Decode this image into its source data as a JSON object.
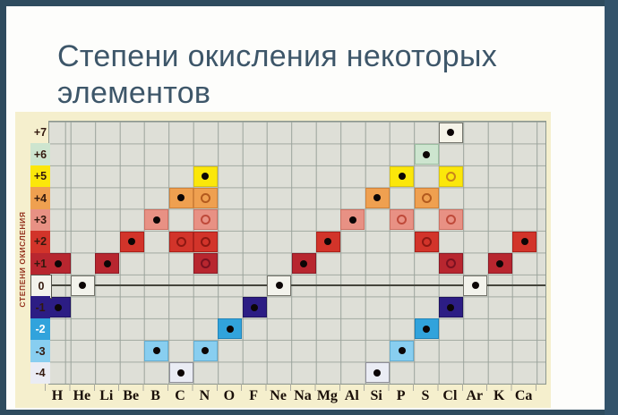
{
  "window": {
    "frame_color": "#2e4b5e",
    "right_band_color": "#33536b",
    "slide_bg": "#fdfdfb"
  },
  "title": {
    "lines": [
      "Степени окисления некоторых",
      "элементов"
    ],
    "color": "#3d5669"
  },
  "panel": {
    "bg": "#f5efcd",
    "plot_bg": "#dedfd7",
    "grid_color": "#9aa39c",
    "zero_line_color": "#45453c",
    "ylabel_color": "#93301c",
    "row_label_color": "#33190e",
    "element_label_color": "#1a0f08"
  },
  "chart_data": {
    "type": "heatmap",
    "title": "Степени окисления некоторых элементов",
    "ylabel": "СТЕПЕНИ ОКИСЛЕНИЯ",
    "xlabel": "",
    "x_categories": [
      "H",
      "He",
      "Li",
      "Be",
      "B",
      "C",
      "N",
      "O",
      "F",
      "Ne",
      "Na",
      "Mg",
      "Al",
      "Si",
      "P",
      "S",
      "Cl",
      "Ar",
      "K",
      "Ca"
    ],
    "y_range": [
      7,
      -4
    ],
    "grid": true,
    "marker_types": {
      "filled": "black filled dot",
      "open": "open circle"
    },
    "rows": [
      {
        "label": "+7",
        "color": "#f6f4e9",
        "border": "#73736a",
        "ring": "#8a8a80",
        "swatch": false
      },
      {
        "label": "+6",
        "color": "#cde5cf",
        "border": "#9cbfa2",
        "ring": "#5f8f6a",
        "swatch": true
      },
      {
        "label": "+5",
        "color": "#fbe70a",
        "border": "#d9c414",
        "ring": "#c9851a",
        "swatch": true
      },
      {
        "label": "+4",
        "color": "#efa050",
        "border": "#d0823a",
        "ring": "#b35a1e",
        "swatch": true
      },
      {
        "label": "+3",
        "color": "#e89184",
        "border": "#cc7163",
        "ring": "#bf4a3a",
        "swatch": true
      },
      {
        "label": "+2",
        "color": "#d2342a",
        "border": "#aa211b",
        "ring": "#8d1812",
        "swatch": true
      },
      {
        "label": "+1",
        "color": "#b8262f",
        "border": "#8a1a26",
        "ring": "#7a1120",
        "swatch": true
      },
      {
        "label": "0",
        "color": "#f3f3ec",
        "border": "#73736a",
        "ring": "#8a8a80",
        "swatch": true,
        "swatch_border": true
      },
      {
        "label": "-1",
        "color": "#2c1d84",
        "border": "#1e1260",
        "ring": "#150d4a",
        "swatch": true
      },
      {
        "label": "-2",
        "color": "#31a3dc",
        "border": "#2184b8",
        "ring": "#1a6e9c",
        "swatch": true,
        "label_color": "#ffffff"
      },
      {
        "label": "-3",
        "color": "#88cef0",
        "border": "#64aed2",
        "ring": "#4a92b8",
        "swatch": true
      },
      {
        "label": "-4",
        "color": "#eaecf4",
        "border": "#8e8e98",
        "ring": "#8a8a92",
        "swatch": true
      }
    ],
    "points": [
      {
        "element": "H",
        "state": "+1",
        "marker": "filled"
      },
      {
        "element": "H",
        "state": "-1",
        "marker": "filled"
      },
      {
        "element": "He",
        "state": "0",
        "marker": "filled"
      },
      {
        "element": "Li",
        "state": "+1",
        "marker": "filled"
      },
      {
        "element": "Be",
        "state": "+2",
        "marker": "filled"
      },
      {
        "element": "B",
        "state": "+3",
        "marker": "filled"
      },
      {
        "element": "B",
        "state": "-3",
        "marker": "filled"
      },
      {
        "element": "C",
        "state": "+4",
        "marker": "filled"
      },
      {
        "element": "C",
        "state": "+2",
        "marker": "open"
      },
      {
        "element": "C",
        "state": "-4",
        "marker": "filled"
      },
      {
        "element": "N",
        "state": "+5",
        "marker": "filled"
      },
      {
        "element": "N",
        "state": "+4",
        "marker": "open"
      },
      {
        "element": "N",
        "state": "+3",
        "marker": "open"
      },
      {
        "element": "N",
        "state": "+2",
        "marker": "open"
      },
      {
        "element": "N",
        "state": "+1",
        "marker": "open"
      },
      {
        "element": "N",
        "state": "-3",
        "marker": "filled"
      },
      {
        "element": "O",
        "state": "-2",
        "marker": "filled"
      },
      {
        "element": "F",
        "state": "-1",
        "marker": "filled"
      },
      {
        "element": "Ne",
        "state": "0",
        "marker": "filled"
      },
      {
        "element": "Na",
        "state": "+1",
        "marker": "filled"
      },
      {
        "element": "Mg",
        "state": "+2",
        "marker": "filled"
      },
      {
        "element": "Al",
        "state": "+3",
        "marker": "filled"
      },
      {
        "element": "Si",
        "state": "+4",
        "marker": "filled"
      },
      {
        "element": "Si",
        "state": "-4",
        "marker": "filled"
      },
      {
        "element": "P",
        "state": "+5",
        "marker": "filled"
      },
      {
        "element": "P",
        "state": "+3",
        "marker": "open"
      },
      {
        "element": "P",
        "state": "-3",
        "marker": "filled"
      },
      {
        "element": "S",
        "state": "+6",
        "marker": "filled"
      },
      {
        "element": "S",
        "state": "+4",
        "marker": "open"
      },
      {
        "element": "S",
        "state": "+2",
        "marker": "open"
      },
      {
        "element": "S",
        "state": "-2",
        "marker": "filled"
      },
      {
        "element": "Cl",
        "state": "+7",
        "marker": "filled"
      },
      {
        "element": "Cl",
        "state": "+5",
        "marker": "open"
      },
      {
        "element": "Cl",
        "state": "+3",
        "marker": "open"
      },
      {
        "element": "Cl",
        "state": "+1",
        "marker": "open"
      },
      {
        "element": "Cl",
        "state": "-1",
        "marker": "filled"
      },
      {
        "element": "Ar",
        "state": "0",
        "marker": "filled"
      },
      {
        "element": "K",
        "state": "+1",
        "marker": "filled"
      },
      {
        "element": "Ca",
        "state": "+2",
        "marker": "filled"
      }
    ]
  }
}
